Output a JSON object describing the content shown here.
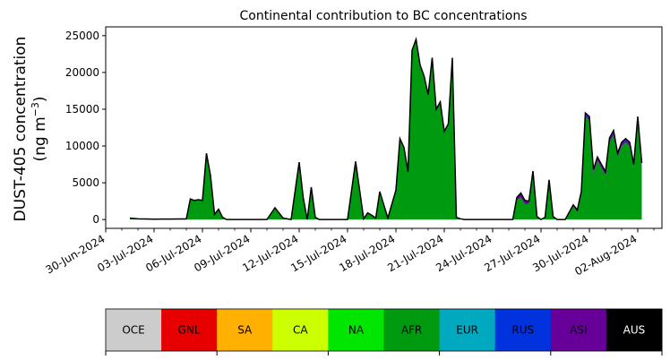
{
  "chart_data": {
    "type": "area",
    "title": "Continental contribution to BC concentrations",
    "ylabel_line1": "DUST-405 concentration",
    "ylabel_line2_prefix": "(ng m",
    "ylabel_line2_sup": "−3",
    "ylabel_line2_suffix": ")",
    "xlabel": "",
    "ylim": [
      -1200,
      26200
    ],
    "yticks": [
      0,
      5000,
      10000,
      15000,
      20000,
      25000
    ],
    "xlim": [
      "2024-06-30T00:00",
      "2024-08-03T12:00"
    ],
    "xticks": [
      "30-Jun-2024",
      "03-Jul-2024",
      "06-Jul-2024",
      "09-Jul-2024",
      "12-Jul-2024",
      "15-Jul-2024",
      "18-Jul-2024",
      "21-Jul-2024",
      "24-Jul-2024",
      "27-Jul-2024",
      "30-Jul-2024",
      "02-Aug-2024"
    ],
    "x": [
      "2024-07-01T12:00",
      "2024-07-02T00:00",
      "2024-07-02T12:00",
      "2024-07-03T00:00",
      "2024-07-03T12:00",
      "2024-07-04T00:00",
      "2024-07-04T12:00",
      "2024-07-05T00:00",
      "2024-07-05T06:00",
      "2024-07-05T12:00",
      "2024-07-05T18:00",
      "2024-07-06T00:00",
      "2024-07-06T06:00",
      "2024-07-06T12:00",
      "2024-07-06T18:00",
      "2024-07-07T00:00",
      "2024-07-07T06:00",
      "2024-07-07T12:00",
      "2024-07-07T18:00",
      "2024-07-08T00:00",
      "2024-07-08T12:00",
      "2024-07-09T00:00",
      "2024-07-09T12:00",
      "2024-07-10T00:00",
      "2024-07-10T12:00",
      "2024-07-11T00:00",
      "2024-07-11T12:00",
      "2024-07-12T00:00",
      "2024-07-12T06:00",
      "2024-07-12T12:00",
      "2024-07-12T18:00",
      "2024-07-13T00:00",
      "2024-07-13T06:00",
      "2024-07-13T12:00",
      "2024-07-13T18:00",
      "2024-07-14T00:00",
      "2024-07-14T12:00",
      "2024-07-15T00:00",
      "2024-07-15T12:00",
      "2024-07-16T00:00",
      "2024-07-16T06:00",
      "2024-07-16T12:00",
      "2024-07-16T18:00",
      "2024-07-17T00:00",
      "2024-07-17T12:00",
      "2024-07-18T00:00",
      "2024-07-18T06:00",
      "2024-07-18T12:00",
      "2024-07-18T18:00",
      "2024-07-19T00:00",
      "2024-07-19T06:00",
      "2024-07-19T12:00",
      "2024-07-19T18:00",
      "2024-07-20T00:00",
      "2024-07-20T06:00",
      "2024-07-20T12:00",
      "2024-07-20T18:00",
      "2024-07-21T00:00",
      "2024-07-21T06:00",
      "2024-07-21T12:00",
      "2024-07-21T18:00",
      "2024-07-22T00:00",
      "2024-07-22T06:00",
      "2024-07-22T12:00",
      "2024-07-22T18:00",
      "2024-07-23T00:00",
      "2024-07-23T12:00",
      "2024-07-24T00:00",
      "2024-07-24T12:00",
      "2024-07-25T00:00",
      "2024-07-25T06:00",
      "2024-07-25T12:00",
      "2024-07-25T18:00",
      "2024-07-26T00:00",
      "2024-07-26T06:00",
      "2024-07-26T12:00",
      "2024-07-26T18:00",
      "2024-07-27T00:00",
      "2024-07-27T06:00",
      "2024-07-27T12:00",
      "2024-07-27T18:00",
      "2024-07-28T00:00",
      "2024-07-28T12:00",
      "2024-07-29T00:00",
      "2024-07-29T06:00",
      "2024-07-29T12:00",
      "2024-07-29T18:00",
      "2024-07-30T00:00",
      "2024-07-30T06:00",
      "2024-07-30T12:00",
      "2024-07-30T18:00",
      "2024-07-31T00:00",
      "2024-07-31T06:00",
      "2024-07-31T12:00",
      "2024-07-31T18:00",
      "2024-08-01T00:00",
      "2024-08-01T06:00",
      "2024-08-01T12:00",
      "2024-08-01T18:00",
      "2024-08-02T00:00",
      "2024-08-02T06:00"
    ],
    "series": [
      {
        "name": "AFR",
        "color": "#009a10",
        "values": [
          200,
          100,
          80,
          50,
          60,
          60,
          80,
          80,
          2800,
          2600,
          2700,
          2600,
          9000,
          6000,
          700,
          1400,
          300,
          0,
          0,
          0,
          0,
          0,
          0,
          0,
          1600,
          200,
          0,
          7800,
          3000,
          0,
          4400,
          300,
          0,
          0,
          0,
          0,
          0,
          0,
          7900,
          100,
          900,
          600,
          200,
          3800,
          200,
          4000,
          11000,
          9800,
          6500,
          23000,
          24500,
          21000,
          19500,
          17000,
          22000,
          15000,
          16000,
          12000,
          13000,
          22000,
          300,
          100,
          0,
          0,
          0,
          0,
          0,
          0,
          0,
          0,
          0,
          2700,
          3000,
          2100,
          2100,
          6000,
          300,
          0,
          200,
          5000,
          300,
          0,
          0,
          1800,
          1000,
          3300,
          14000,
          13500,
          6300,
          8000,
          7000,
          6000,
          10500,
          11500,
          8500,
          10000,
          10500,
          10000,
          7000,
          13300,
          7200
        ]
      },
      {
        "name": "ASI",
        "color": "#660099",
        "values": [
          0,
          0,
          0,
          0,
          0,
          0,
          0,
          0,
          0,
          0,
          0,
          0,
          0,
          0,
          0,
          0,
          0,
          0,
          0,
          0,
          0,
          0,
          0,
          0,
          0,
          0,
          0,
          0,
          0,
          0,
          0,
          0,
          0,
          0,
          0,
          0,
          0,
          0,
          0,
          0,
          0,
          0,
          0,
          0,
          0,
          0,
          0,
          0,
          0,
          0,
          0,
          0,
          0,
          0,
          0,
          0,
          0,
          0,
          0,
          0,
          0,
          0,
          0,
          0,
          0,
          0,
          0,
          0,
          0,
          0,
          0,
          300,
          600,
          500,
          400,
          600,
          100,
          0,
          100,
          400,
          100,
          0,
          0,
          200,
          300,
          300,
          300,
          300,
          300,
          300,
          300,
          300,
          400,
          400,
          300,
          300,
          300,
          300,
          300,
          500,
          300
        ]
      },
      {
        "name": "RUS",
        "color": "#0033dd",
        "values": [
          0,
          0,
          0,
          0,
          0,
          0,
          0,
          0,
          0,
          0,
          0,
          0,
          0,
          0,
          0,
          0,
          0,
          0,
          0,
          0,
          0,
          0,
          0,
          0,
          0,
          0,
          0,
          0,
          0,
          0,
          0,
          0,
          0,
          0,
          0,
          0,
          0,
          0,
          0,
          0,
          0,
          0,
          0,
          0,
          0,
          0,
          0,
          0,
          0,
          0,
          0,
          0,
          0,
          0,
          0,
          0,
          0,
          0,
          0,
          0,
          0,
          0,
          0,
          0,
          0,
          0,
          0,
          0,
          0,
          0,
          0,
          0,
          0,
          0,
          0,
          0,
          0,
          0,
          0,
          0,
          0,
          0,
          0,
          0,
          0,
          200,
          200,
          200,
          200,
          200,
          200,
          200,
          200,
          200,
          200,
          200,
          200,
          200,
          200,
          200,
          200
        ]
      }
    ],
    "legend": [
      {
        "label": "OCE",
        "color": "#cccccc",
        "text_color": "#000000"
      },
      {
        "label": "GNL",
        "color": "#e60000",
        "text_color": "#000000"
      },
      {
        "label": "SA",
        "color": "#ffb000",
        "text_color": "#000000"
      },
      {
        "label": "CA",
        "color": "#ccff00",
        "text_color": "#000000"
      },
      {
        "label": "NA",
        "color": "#00e600",
        "text_color": "#000000"
      },
      {
        "label": "AFR",
        "color": "#009a10",
        "text_color": "#000000"
      },
      {
        "label": "EUR",
        "color": "#00a8c0",
        "text_color": "#000000"
      },
      {
        "label": "RUS",
        "color": "#0033dd",
        "text_color": "#000000"
      },
      {
        "label": "ASI",
        "color": "#660099",
        "text_color": "#000000"
      },
      {
        "label": "AUS",
        "color": "#000000",
        "text_color": "#ffffff"
      }
    ],
    "legend_placement": "bottom",
    "grid": false
  }
}
